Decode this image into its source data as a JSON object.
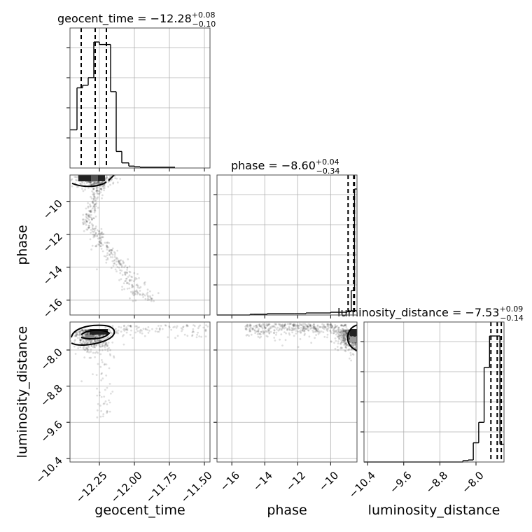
{
  "chart_data": {
    "type": "corner",
    "parameters": [
      "geocent_time",
      "phase",
      "luminosity_distance"
    ],
    "xlabels": [
      "geocent_time",
      "phase",
      "luminosity_distance"
    ],
    "ylabels": [
      "",
      "phase",
      "luminosity_distance"
    ],
    "titles": [
      {
        "param": "geocent_time",
        "prefix": "geocent_time = ",
        "median": "−12.28",
        "plus": "+0.08",
        "minus": "−0.10"
      },
      {
        "param": "phase",
        "prefix": "phase = ",
        "median": "−8.60",
        "plus": "+0.04",
        "minus": "−0.34"
      },
      {
        "param": "luminosity_distance",
        "prefix": "luminosity_distance = ",
        "median": "−7.53",
        "plus": "+0.09",
        "minus": "−0.14"
      }
    ],
    "ranges": {
      "geocent_time": [
        -12.46,
        -11.46
      ],
      "phase": [
        -16.9,
        -8.4
      ],
      "luminosity_distance": [
        -10.48,
        -7.38
      ]
    },
    "ticks": {
      "geocent_time": {
        "values": [
          -12.25,
          -12.0,
          -11.75,
          -11.5
        ],
        "labels": [
          "−12.25",
          "−12.00",
          "−11.75",
          "−11.50"
        ]
      },
      "phase": {
        "values": [
          -16,
          -14,
          -12,
          -10
        ],
        "labels": [
          "−16",
          "−14",
          "−12",
          "−10"
        ]
      },
      "luminosity_distance": {
        "values": [
          -10.4,
          -9.6,
          -8.8,
          -8.0
        ],
        "labels": [
          "−10.4",
          "−9.6",
          "−8.8",
          "−8.0"
        ]
      }
    },
    "histograms": {
      "geocent_time": {
        "edges": [
          -12.46,
          -12.41,
          -12.37,
          -12.33,
          -12.29,
          -12.25,
          -12.21,
          -12.17,
          -12.13,
          -12.09,
          -12.04,
          -12.0,
          -11.96,
          -11.92,
          -11.88,
          -11.84,
          -11.8,
          -11.75,
          -11.71
        ],
        "counts": [
          0.3,
          0.63,
          0.65,
          0.71,
          0.99,
          0.97,
          0.97,
          0.6,
          0.13,
          0.04,
          0.015,
          0.01,
          0.006,
          0.006,
          0.006,
          0.006,
          0.006,
          0.006
        ],
        "quantiles": [
          -12.38,
          -12.28,
          -12.2
        ]
      },
      "phase": {
        "edges": [
          -16.9,
          -14.9,
          -14.7,
          -13.85,
          -12.2,
          -11.5,
          -10.0,
          -9.0,
          -8.75,
          -8.55,
          -8.4
        ],
        "counts": [
          0,
          0.005,
          0.005,
          0.01,
          0.01,
          0.015,
          0.02,
          0.025,
          0.18,
          0.93
        ],
        "quantiles": [
          -8.94,
          -8.6,
          -8.56
        ]
      },
      "luminosity_distance": {
        "edges": [
          -10.48,
          -8.29,
          -8.17,
          -8.06,
          -7.94,
          -7.82,
          -7.7,
          -7.58,
          -7.47,
          -7.38
        ],
        "counts": [
          0,
          0.01,
          0.015,
          0.14,
          0.29,
          0.69,
          0.92,
          0.92,
          0.13
        ],
        "quantiles": [
          -7.67,
          -7.53,
          -7.44
        ]
      }
    },
    "grid": true,
    "show_titles": true
  }
}
